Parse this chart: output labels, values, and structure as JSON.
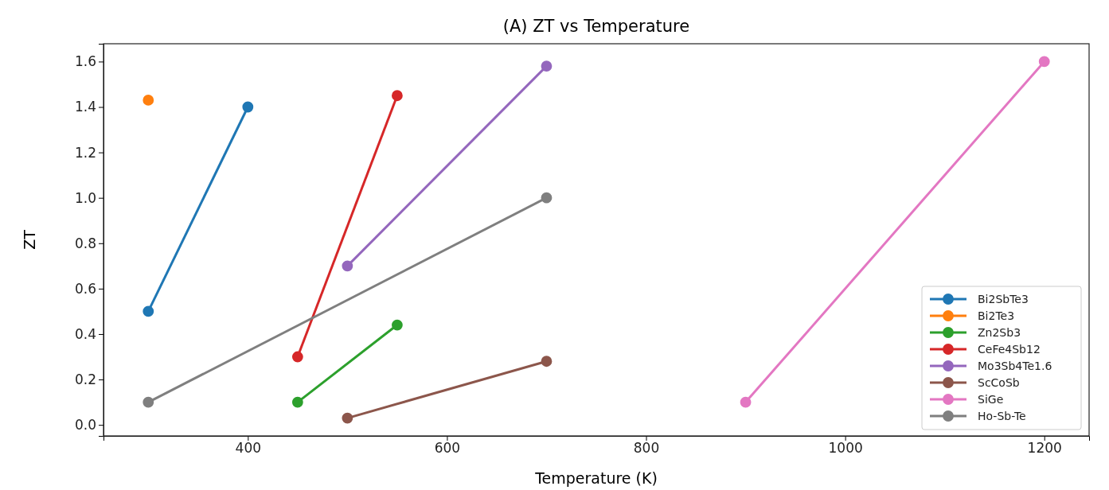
{
  "chart_data": {
    "type": "line",
    "title": "(A) ZT vs Temperature",
    "xlabel": "Temperature (K)",
    "ylabel": "ZT",
    "xlim": [
      255,
      1245
    ],
    "xticks": [
      400,
      600,
      800,
      1000,
      1200
    ],
    "ylim": [
      -0.0485,
      1.6785
    ],
    "yticks": [
      {
        "value": 0,
        "label": "0.0"
      },
      0.2,
      0.4,
      0.6,
      0.8,
      {
        "value": 1,
        "label": "1.0"
      },
      1.2,
      1.4,
      1.6
    ],
    "marker": "circle",
    "legend": "bottom right",
    "grid": false,
    "series": [
      {
        "name": "Bi2SbTe3",
        "color": "#1f77b4",
        "x": [
          300,
          400
        ],
        "values": [
          0.5,
          1.4
        ]
      },
      {
        "name": "Bi2Te3",
        "color": "#ff7f0e",
        "x": [
          300
        ],
        "values": [
          1.43
        ]
      },
      {
        "name": "Zn2Sb3",
        "color": "#2ca02c",
        "x": [
          450,
          550
        ],
        "values": [
          0.1,
          0.44
        ]
      },
      {
        "name": "CeFe4Sb12",
        "color": "#d62728",
        "x": [
          450,
          550
        ],
        "values": [
          0.3,
          1.45
        ]
      },
      {
        "name": "Mo3Sb4Te1.6",
        "color": "#9467bd",
        "x": [
          500,
          700
        ],
        "values": [
          0.7,
          1.58
        ]
      },
      {
        "name": "ScCoSb",
        "color": "#8c564b",
        "x": [
          500,
          700
        ],
        "values": [
          0.03,
          0.28
        ]
      },
      {
        "name": "SiGe",
        "color": "#e377c2",
        "x": [
          900,
          1200
        ],
        "values": [
          0.1,
          1.6
        ]
      },
      {
        "name": "Ho-Sb-Te",
        "color": "#7f7f7f",
        "x": [
          300,
          700
        ],
        "values": [
          0.1,
          1.0
        ]
      }
    ]
  }
}
